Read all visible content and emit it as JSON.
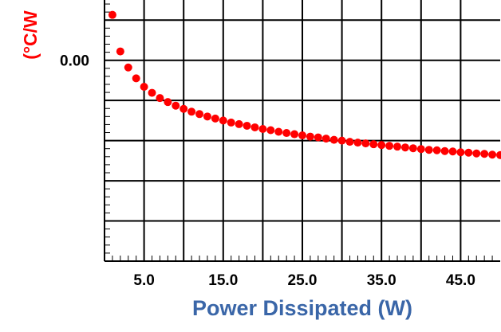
{
  "chart_data": {
    "type": "scatter",
    "title": "",
    "xlabel": "Power Dissipated (W)",
    "ylabel": "(°C/W",
    "x_ticks": [
      "5.0",
      "15.0",
      "25.0",
      "35.0",
      "45.0"
    ],
    "x_tick_values": [
      5,
      15,
      25,
      35,
      45
    ],
    "y_ticks": [
      "0.00"
    ],
    "y_tick_values": [
      0.0
    ],
    "xlim": [
      0,
      50
    ],
    "ylim": [
      -0.5,
      0.15
    ],
    "grid": true,
    "series": [
      {
        "color": "#ff0000",
        "x": [
          1,
          2,
          3,
          4,
          5,
          6,
          7,
          8,
          9,
          10,
          11,
          12,
          13,
          14,
          15,
          16,
          17,
          18,
          19,
          20,
          21,
          22,
          23,
          24,
          25,
          26,
          27,
          28,
          29,
          30,
          31,
          32,
          33,
          34,
          35,
          36,
          37,
          38,
          39,
          40,
          41,
          42,
          43,
          44,
          45,
          46,
          47,
          48,
          49,
          50
        ],
        "y": [
          0.113,
          0.022,
          -0.018,
          -0.045,
          -0.066,
          -0.081,
          -0.094,
          -0.104,
          -0.113,
          -0.121,
          -0.128,
          -0.134,
          -0.14,
          -0.145,
          -0.15,
          -0.155,
          -0.159,
          -0.163,
          -0.167,
          -0.171,
          -0.174,
          -0.178,
          -0.181,
          -0.184,
          -0.187,
          -0.19,
          -0.192,
          -0.195,
          -0.198,
          -0.2,
          -0.203,
          -0.205,
          -0.207,
          -0.209,
          -0.211,
          -0.213,
          -0.215,
          -0.217,
          -0.219,
          -0.221,
          -0.223,
          -0.224,
          -0.226,
          -0.227,
          -0.229,
          -0.23,
          -0.232,
          -0.233,
          -0.235,
          -0.236
        ]
      }
    ]
  }
}
